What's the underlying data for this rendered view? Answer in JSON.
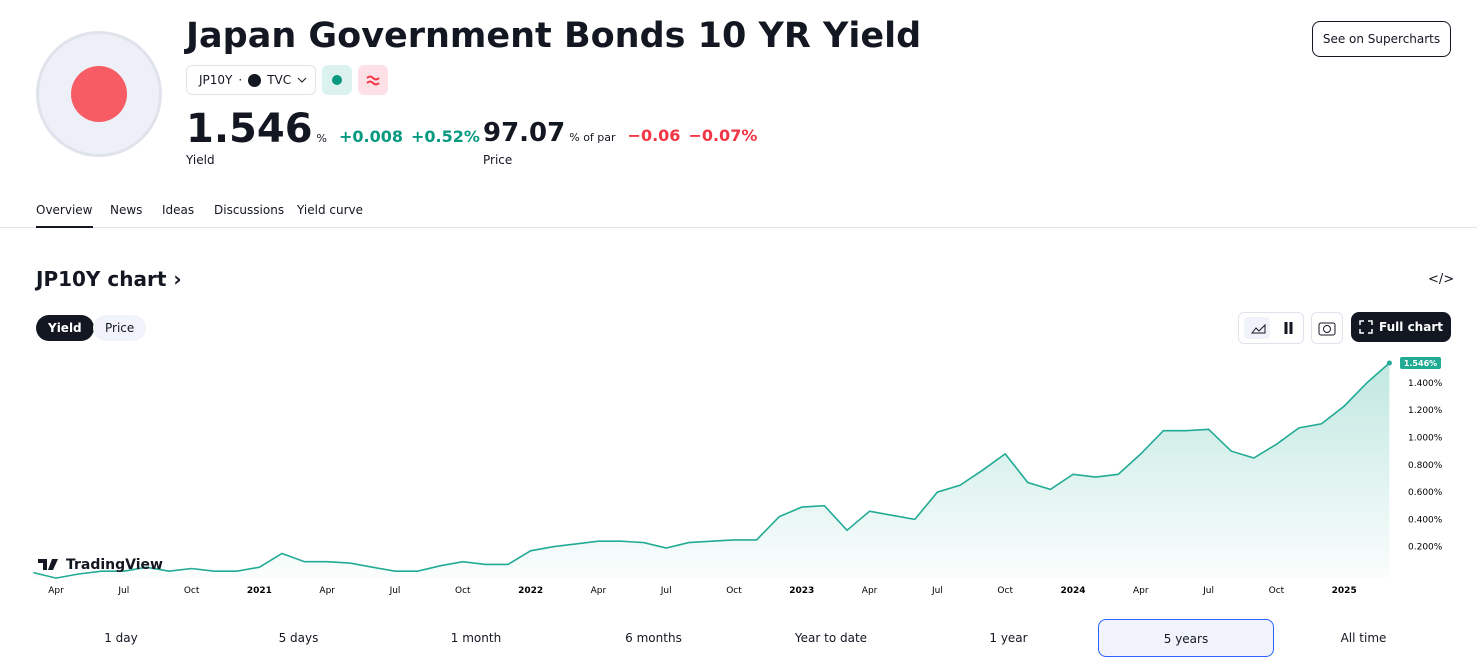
{
  "header": {
    "title": "Japan Government Bonds 10 YR Yield",
    "symbol": "JP10Y",
    "exchange": "TVC",
    "button": "See on Supercharts"
  },
  "quotes": [
    {
      "value": "1.546",
      "unit": "%",
      "change": "+0.008",
      "change_pct": "+0.52%",
      "label": "Yield",
      "direction": "up"
    },
    {
      "value": "97.07",
      "unit": "% of par",
      "change": "−0.06",
      "change_pct": "−0.07%",
      "label": "Price",
      "direction": "down"
    }
  ],
  "tabs": {
    "items": [
      "Overview",
      "News",
      "Ideas",
      "Discussions",
      "Yield curve"
    ],
    "active": 0
  },
  "section": {
    "title": "JP10Y chart",
    "toggle": [
      "Yield",
      "Price"
    ],
    "toggle_active": 0,
    "full_chart": "Full chart"
  },
  "ranges": {
    "items": [
      "1 day",
      "5 days",
      "1 month",
      "6 months",
      "Year to date",
      "1 year",
      "5 years",
      "All time"
    ],
    "active": 6
  },
  "chart_data": {
    "type": "area",
    "watermark": "TradingView",
    "color": "#22ab94",
    "categories": [
      null,
      "Apr",
      null,
      null,
      "Jul",
      null,
      null,
      "Oct",
      null,
      null,
      "2021",
      null,
      null,
      "Apr",
      null,
      null,
      "Jul",
      null,
      null,
      "Oct",
      null,
      null,
      "2022",
      null,
      null,
      "Apr",
      null,
      null,
      "Jul",
      null,
      null,
      "Oct",
      null,
      null,
      "2023",
      null,
      null,
      "Apr",
      null,
      null,
      "Jul",
      null,
      null,
      "Oct",
      null,
      null,
      "2024",
      null,
      null,
      "Apr",
      null,
      null,
      "Jul",
      null,
      null,
      "Oct",
      null,
      null,
      "2025",
      null,
      null
    ],
    "values": [
      0.01,
      -0.03,
      0.0,
      0.02,
      0.02,
      0.05,
      0.02,
      0.04,
      0.02,
      0.02,
      0.05,
      0.15,
      0.09,
      0.09,
      0.08,
      0.05,
      0.02,
      0.02,
      0.06,
      0.09,
      0.07,
      0.07,
      0.17,
      0.2,
      0.22,
      0.24,
      0.24,
      0.23,
      0.19,
      0.23,
      0.24,
      0.25,
      0.25,
      0.42,
      0.49,
      0.5,
      0.32,
      0.46,
      0.43,
      0.4,
      0.6,
      0.65,
      0.76,
      0.88,
      0.67,
      0.62,
      0.73,
      0.71,
      0.73,
      0.88,
      1.05,
      1.05,
      1.06,
      0.9,
      0.85,
      0.95,
      1.07,
      1.1,
      1.23,
      1.4,
      1.546
    ],
    "value_labels": [
      null,
      null,
      null,
      null,
      null,
      null,
      null,
      null,
      null,
      null,
      null,
      null,
      null,
      null,
      null,
      null,
      null,
      null,
      null,
      null,
      null,
      null,
      null,
      null,
      null,
      null,
      null,
      null,
      null,
      null,
      null,
      null,
      null,
      null,
      null,
      null,
      null,
      null,
      null,
      null,
      null,
      null,
      null,
      null,
      null,
      null,
      null,
      null,
      null,
      null,
      null,
      null,
      null,
      null,
      null,
      null,
      null,
      null,
      null,
      null,
      "1.546%"
    ],
    "ylim": [
      -0.05,
      1.6
    ],
    "yticks": [
      {
        "value": 0.2,
        "label": "0.200%"
      },
      {
        "value": 0.4,
        "label": "0.400%"
      },
      {
        "value": 0.6,
        "label": "0.600%"
      },
      {
        "value": 0.8,
        "label": "0.800%"
      },
      {
        "value": 1.0,
        "label": "1.000%"
      },
      {
        "value": 1.2,
        "label": "1.200%"
      },
      {
        "value": 1.4,
        "label": "1.400%"
      }
    ],
    "grid": false
  }
}
